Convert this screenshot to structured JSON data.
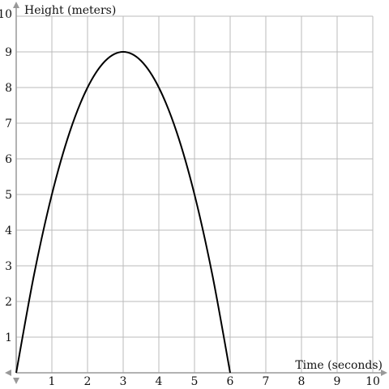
{
  "chart_data": {
    "type": "line",
    "xlabel": "Time (seconds)",
    "ylabel": "Height (meters)",
    "xlim": [
      0,
      10
    ],
    "ylim": [
      0,
      10
    ],
    "x_ticks": [
      "1",
      "2",
      "3",
      "4",
      "5",
      "6",
      "7",
      "8",
      "9",
      "10"
    ],
    "y_ticks": [
      "1",
      "2",
      "3",
      "4",
      "5",
      "6",
      "7",
      "8",
      "9",
      "10"
    ],
    "grid": true,
    "series": [
      {
        "x": [
          0,
          0.5,
          1,
          1.5,
          2,
          2.5,
          3,
          3.5,
          4,
          4.5,
          5,
          5.5,
          6
        ],
        "y": [
          0,
          2.75,
          5,
          6.75,
          8,
          8.75,
          9,
          8.75,
          8,
          6.75,
          5,
          2.75,
          0
        ]
      }
    ],
    "colors": {
      "line": "#000000",
      "grid": "#bbbbbb",
      "axis": "#999999"
    }
  }
}
